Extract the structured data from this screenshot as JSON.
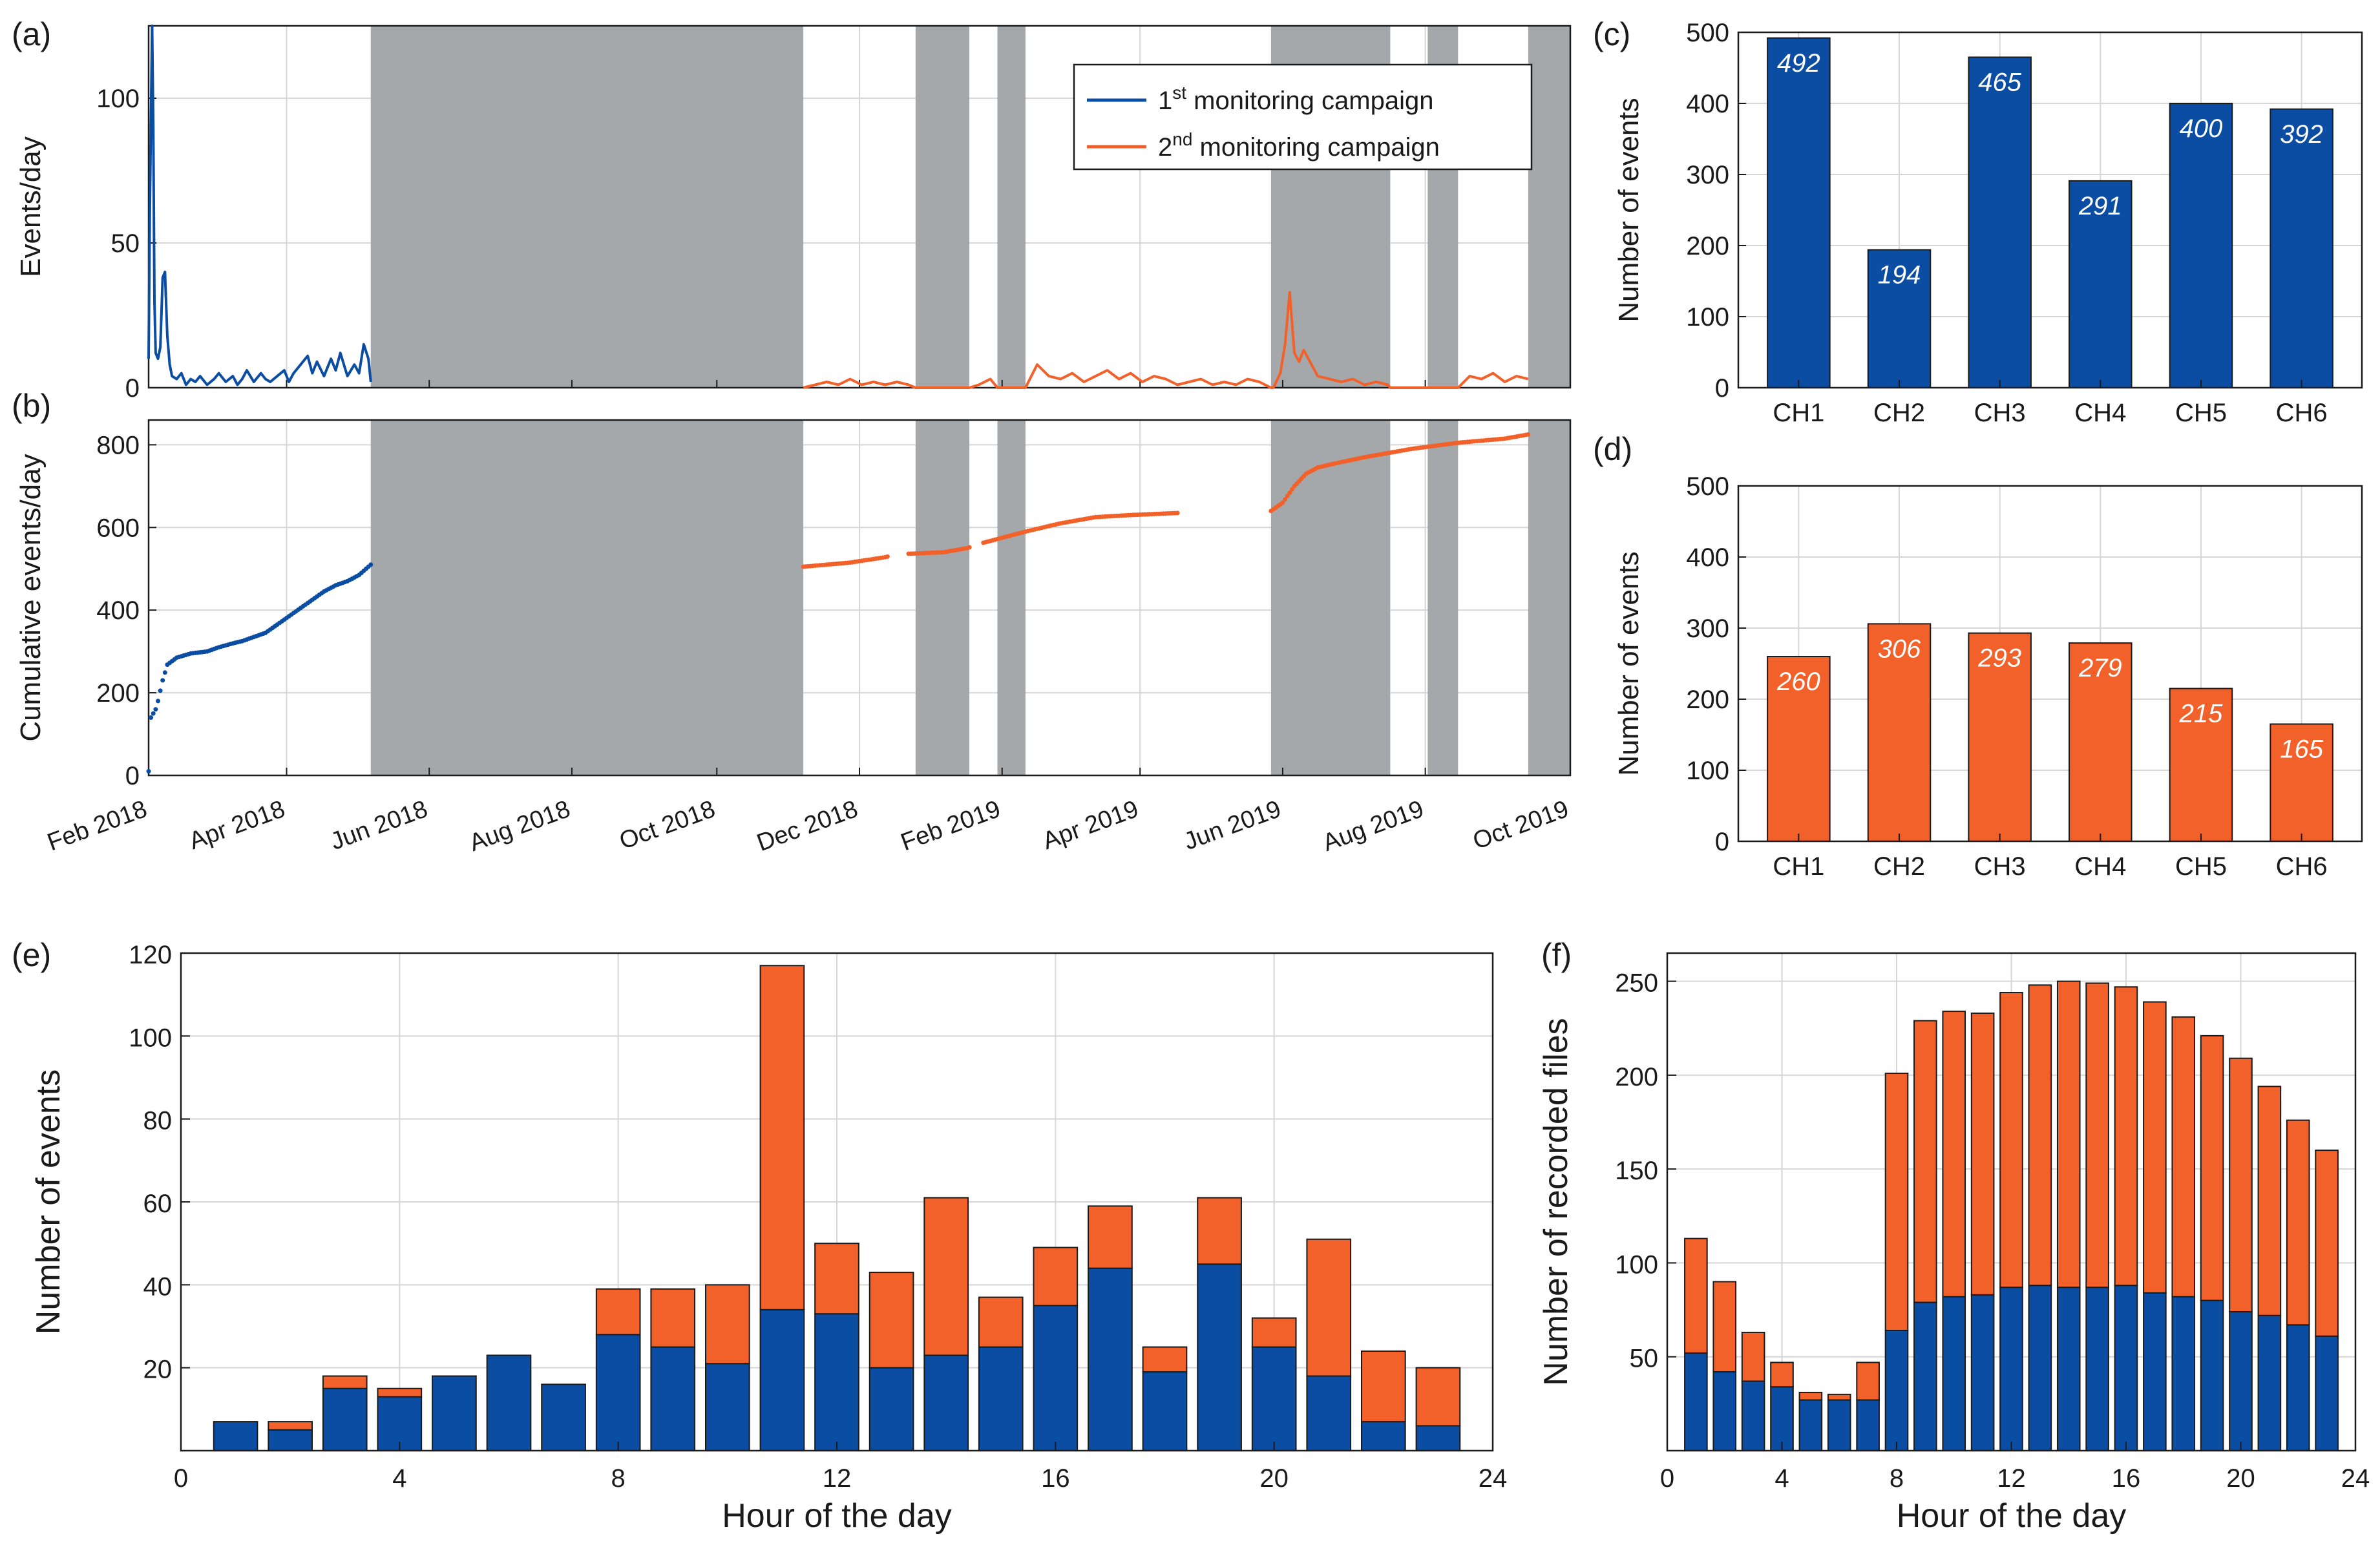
{
  "colors": {
    "blue": "#0b4da2",
    "orange": "#f2612a",
    "gap": "#a5a8ab"
  },
  "panel_labels": [
    "(a)",
    "(b)",
    "(c)",
    "(d)",
    "(e)",
    "(f)"
  ],
  "chart_data": [
    {
      "id": "a",
      "type": "line",
      "ylabel": "Events/day",
      "ylim": [
        0,
        125
      ],
      "yticks": [
        "0",
        "50",
        "100"
      ],
      "ytick_values": [
        0,
        50,
        100
      ],
      "x_range_days": [
        0,
        608
      ],
      "date_ticks": [
        {
          "label": "Feb 2018",
          "day": 0
        },
        {
          "label": "Apr 2018",
          "day": 59
        },
        {
          "label": "Jun 2018",
          "day": 120
        },
        {
          "label": "Aug 2018",
          "day": 181
        },
        {
          "label": "Oct 2018",
          "day": 243
        },
        {
          "label": "Dec 2018",
          "day": 304
        },
        {
          "label": "Feb 2019",
          "day": 365
        },
        {
          "label": "Apr 2019",
          "day": 424
        },
        {
          "label": "Jun 2019",
          "day": 485
        },
        {
          "label": "Aug 2019",
          "day": 546
        },
        {
          "label": "Oct 2019",
          "day": 608
        }
      ],
      "no_data_periods_days": [
        [
          95,
          280
        ],
        [
          328,
          351
        ],
        [
          363,
          375
        ],
        [
          480,
          531
        ],
        [
          547,
          560
        ],
        [
          590,
          608
        ]
      ],
      "legend": {
        "position": "top-right",
        "entries": [
          {
            "base": "1",
            "sup": "st",
            "rest": " monitoring campaign",
            "series": "1st monitoring campaign"
          },
          {
            "base": "2",
            "sup": "nd",
            "rest": " monitoring campaign",
            "series": "2nd monitoring campaign"
          }
        ]
      },
      "series": [
        {
          "name": "1st monitoring campaign",
          "x": [
            0,
            0.5,
            1.5,
            2,
            2.5,
            3,
            4,
            5,
            6,
            7,
            8,
            9,
            10,
            12,
            14,
            16,
            18,
            20,
            22,
            25,
            28,
            30,
            33,
            36,
            38,
            40,
            42,
            45,
            48,
            50,
            52,
            55,
            58,
            60,
            62,
            65,
            68,
            70,
            72,
            75,
            78,
            80,
            82,
            85,
            88,
            90,
            92,
            94,
            95
          ],
          "y": [
            10,
            60,
            127,
            90,
            30,
            12,
            10,
            14,
            38,
            40,
            18,
            8,
            4,
            3,
            5,
            1,
            3,
            2,
            4,
            1,
            3,
            5,
            2,
            4,
            1,
            3,
            6,
            2,
            5,
            3,
            2,
            4,
            6,
            2,
            5,
            8,
            11,
            5,
            9,
            4,
            10,
            6,
            12,
            4,
            8,
            5,
            15,
            10,
            2
          ]
        },
        {
          "name": "2nd monitoring campaign",
          "x": [
            280,
            285,
            290,
            295,
            300,
            305,
            310,
            315,
            320,
            325,
            328,
            351,
            355,
            360,
            363,
            375,
            380,
            385,
            390,
            395,
            400,
            405,
            410,
            415,
            420,
            425,
            430,
            435,
            440,
            445,
            450,
            455,
            460,
            465,
            470,
            475,
            480,
            481,
            484,
            486,
            488,
            490,
            492,
            494,
            496,
            500,
            505,
            510,
            515,
            520,
            525,
            530,
            531,
            547,
            560,
            565,
            570,
            575,
            580,
            585,
            590
          ],
          "y": [
            0,
            1,
            2,
            1,
            3,
            1,
            2,
            1,
            2,
            1,
            0,
            0,
            1,
            3,
            0,
            0,
            8,
            4,
            3,
            5,
            2,
            4,
            6,
            3,
            5,
            2,
            4,
            3,
            1,
            2,
            3,
            1,
            2,
            1,
            3,
            2,
            0,
            0,
            5,
            15,
            33,
            12,
            9,
            13,
            10,
            4,
            3,
            2,
            3,
            1,
            2,
            1,
            0,
            0,
            0,
            4,
            3,
            5,
            2,
            4,
            3
          ]
        }
      ]
    },
    {
      "id": "b",
      "type": "scatter",
      "ylabel": "Cumulative events/day",
      "ylim": [
        0,
        860
      ],
      "yticks": [
        "0",
        "200",
        "400",
        "600",
        "800"
      ],
      "ytick_values": [
        0,
        200,
        400,
        600,
        800
      ],
      "x_range_days": [
        0,
        608
      ],
      "no_data_periods_days": [
        [
          95,
          280
        ],
        [
          328,
          351
        ],
        [
          363,
          375
        ],
        [
          480,
          531
        ],
        [
          547,
          560
        ],
        [
          590,
          608
        ]
      ],
      "x_tick_labels": [
        "Feb 2018",
        "Apr 2018",
        "Jun 2018",
        "Aug 2018",
        "Oct 2018",
        "Dec 2018",
        "Feb 2019",
        "Apr 2019",
        "Jun 2019",
        "Aug 2019",
        "Oct 2019"
      ],
      "series": [
        {
          "name": "1st monitoring campaign",
          "anchor_days": [
            0,
            1,
            2,
            3,
            4,
            6,
            8,
            12,
            18,
            25,
            30,
            35,
            40,
            45,
            50,
            55,
            60,
            65,
            70,
            75,
            80,
            85,
            90,
            95
          ],
          "anchor_values": [
            10,
            140,
            150,
            160,
            180,
            230,
            268,
            285,
            295,
            300,
            310,
            318,
            325,
            335,
            345,
            365,
            385,
            405,
            425,
            445,
            460,
            470,
            485,
            510
          ]
        },
        {
          "name": "2nd monitoring campaign",
          "anchor_days": [
            280,
            300,
            315,
            320,
            340,
            350,
            355,
            365,
            375,
            390,
            405,
            420,
            440,
            480,
            485,
            490,
            495,
            500,
            505,
            520,
            540,
            560,
            580,
            590
          ],
          "anchor_values": [
            505,
            515,
            528,
            535,
            540,
            550,
            560,
            575,
            590,
            610,
            625,
            630,
            635,
            640,
            660,
            700,
            730,
            745,
            752,
            770,
            790,
            805,
            815,
            825
          ],
          "gaps_days": [
            [
              316,
              325
            ],
            [
              351,
              357
            ],
            [
              440,
              480
            ]
          ]
        }
      ]
    },
    {
      "id": "c",
      "type": "bar",
      "ylabel": "Number of events",
      "categories": [
        "CH1",
        "CH2",
        "CH3",
        "CH4",
        "CH5",
        "CH6"
      ],
      "values": [
        492,
        194,
        465,
        291,
        400,
        392
      ],
      "value_labels": [
        "492",
        "194",
        "465",
        "291",
        "400",
        "392"
      ],
      "ylim": [
        0,
        500
      ],
      "yticks": [
        "0",
        "100",
        "200",
        "300",
        "400",
        "500"
      ],
      "ytick_values": [
        0,
        100,
        200,
        300,
        400,
        500
      ]
    },
    {
      "id": "d",
      "type": "bar",
      "ylabel": "Number of events",
      "categories": [
        "CH1",
        "CH2",
        "CH3",
        "CH4",
        "CH5",
        "CH6"
      ],
      "values": [
        260,
        306,
        293,
        279,
        215,
        165
      ],
      "value_labels": [
        "260",
        "306",
        "293",
        "279",
        "215",
        "165"
      ],
      "ylim": [
        0,
        500
      ],
      "yticks": [
        "0",
        "100",
        "200",
        "300",
        "400",
        "500"
      ],
      "ytick_values": [
        0,
        100,
        200,
        300,
        400,
        500
      ]
    },
    {
      "id": "e",
      "type": "bar",
      "stacked": true,
      "xlabel": "Hour of the day",
      "ylabel": "Number of events",
      "xlim": [
        0,
        24
      ],
      "ylim": [
        0,
        120
      ],
      "xticks": [
        "0",
        "4",
        "8",
        "12",
        "16",
        "20",
        "24"
      ],
      "xtick_values": [
        0,
        4,
        8,
        12,
        16,
        20,
        24
      ],
      "yticks": [
        "20",
        "40",
        "60",
        "80",
        "100",
        "120"
      ],
      "ytick_values": [
        20,
        40,
        60,
        80,
        100,
        120
      ],
      "hours": [
        1,
        2,
        3,
        4,
        5,
        6,
        7,
        8,
        9,
        10,
        11,
        12,
        13,
        14,
        15,
        16,
        17,
        18,
        19,
        20,
        21,
        22,
        23
      ],
      "series": [
        {
          "name": "1st monitoring campaign",
          "values": [
            7,
            5,
            15,
            13,
            18,
            23,
            16,
            28,
            25,
            21,
            34,
            33,
            20,
            23,
            25,
            35,
            44,
            19,
            45,
            25,
            18,
            7,
            6
          ]
        },
        {
          "name": "2nd monitoring campaign",
          "values": [
            0,
            2,
            3,
            2,
            0,
            0,
            0,
            11,
            14,
            19,
            83,
            17,
            23,
            38,
            12,
            14,
            15,
            6,
            16,
            7,
            33,
            17,
            14
          ]
        }
      ]
    },
    {
      "id": "f",
      "type": "bar",
      "stacked": true,
      "xlabel": "Hour of the day",
      "ylabel": "Number of recorded files",
      "xlim": [
        0,
        24
      ],
      "ylim": [
        0,
        265
      ],
      "xticks": [
        "0",
        "4",
        "8",
        "12",
        "16",
        "20",
        "24"
      ],
      "xtick_values": [
        0,
        4,
        8,
        12,
        16,
        20,
        24
      ],
      "yticks": [
        "50",
        "100",
        "150",
        "200",
        "250"
      ],
      "ytick_values": [
        50,
        100,
        150,
        200,
        250
      ],
      "hours": [
        1,
        2,
        3,
        4,
        5,
        6,
        7,
        8,
        9,
        10,
        11,
        12,
        13,
        14,
        15,
        16,
        17,
        18,
        19,
        20,
        21,
        22,
        23
      ],
      "series": [
        {
          "name": "1st monitoring campaign",
          "values": [
            52,
            42,
            37,
            34,
            27,
            27,
            27,
            64,
            79,
            82,
            83,
            87,
            88,
            87,
            87,
            88,
            84,
            82,
            80,
            74,
            72,
            67,
            61
          ]
        },
        {
          "name": "2nd monitoring campaign",
          "values": [
            61,
            48,
            26,
            13,
            4,
            3,
            20,
            137,
            150,
            152,
            150,
            157,
            160,
            163,
            162,
            159,
            155,
            149,
            141,
            135,
            122,
            109,
            99
          ]
        }
      ]
    }
  ]
}
